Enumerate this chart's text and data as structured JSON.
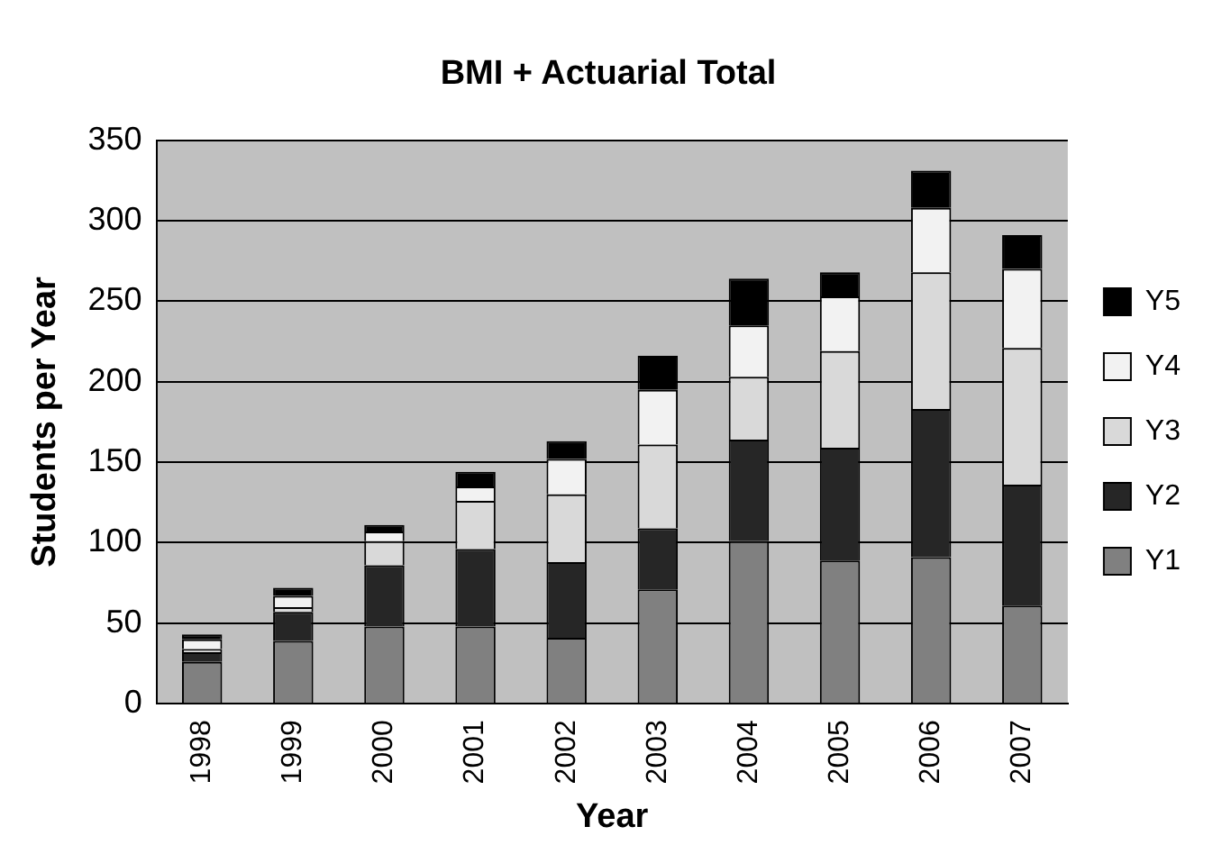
{
  "chart_data": {
    "type": "bar",
    "title": "BMI + Actuarial Total",
    "xlabel": "Year",
    "ylabel": "Students per Year",
    "categories": [
      "1998",
      "1999",
      "2000",
      "2001",
      "2002",
      "2003",
      "2004",
      "2005",
      "2006",
      "2007"
    ],
    "stacked": true,
    "ylim": [
      0,
      350
    ],
    "yticks": [
      0,
      50,
      100,
      150,
      200,
      250,
      300,
      350
    ],
    "grid": "y",
    "legend": "right",
    "series": [
      {
        "name": "Y1",
        "color": "#808080",
        "values": [
          26,
          39,
          48,
          48,
          41,
          71,
          101,
          89,
          91,
          61
        ]
      },
      {
        "name": "Y2",
        "color": "#262626",
        "values": [
          6,
          18,
          38,
          48,
          47,
          38,
          63,
          70,
          92,
          75
        ]
      },
      {
        "name": "Y3",
        "color": "#d9d9d9",
        "values": [
          2,
          3,
          15,
          30,
          42,
          52,
          39,
          60,
          85,
          85
        ]
      },
      {
        "name": "Y4",
        "color": "#f2f2f2",
        "values": [
          6,
          7,
          6,
          9,
          22,
          34,
          32,
          34,
          40,
          49
        ]
      },
      {
        "name": "Y5",
        "color": "#000000",
        "values": [
          3,
          5,
          4,
          9,
          11,
          21,
          29,
          15,
          23,
          21
        ]
      }
    ]
  }
}
